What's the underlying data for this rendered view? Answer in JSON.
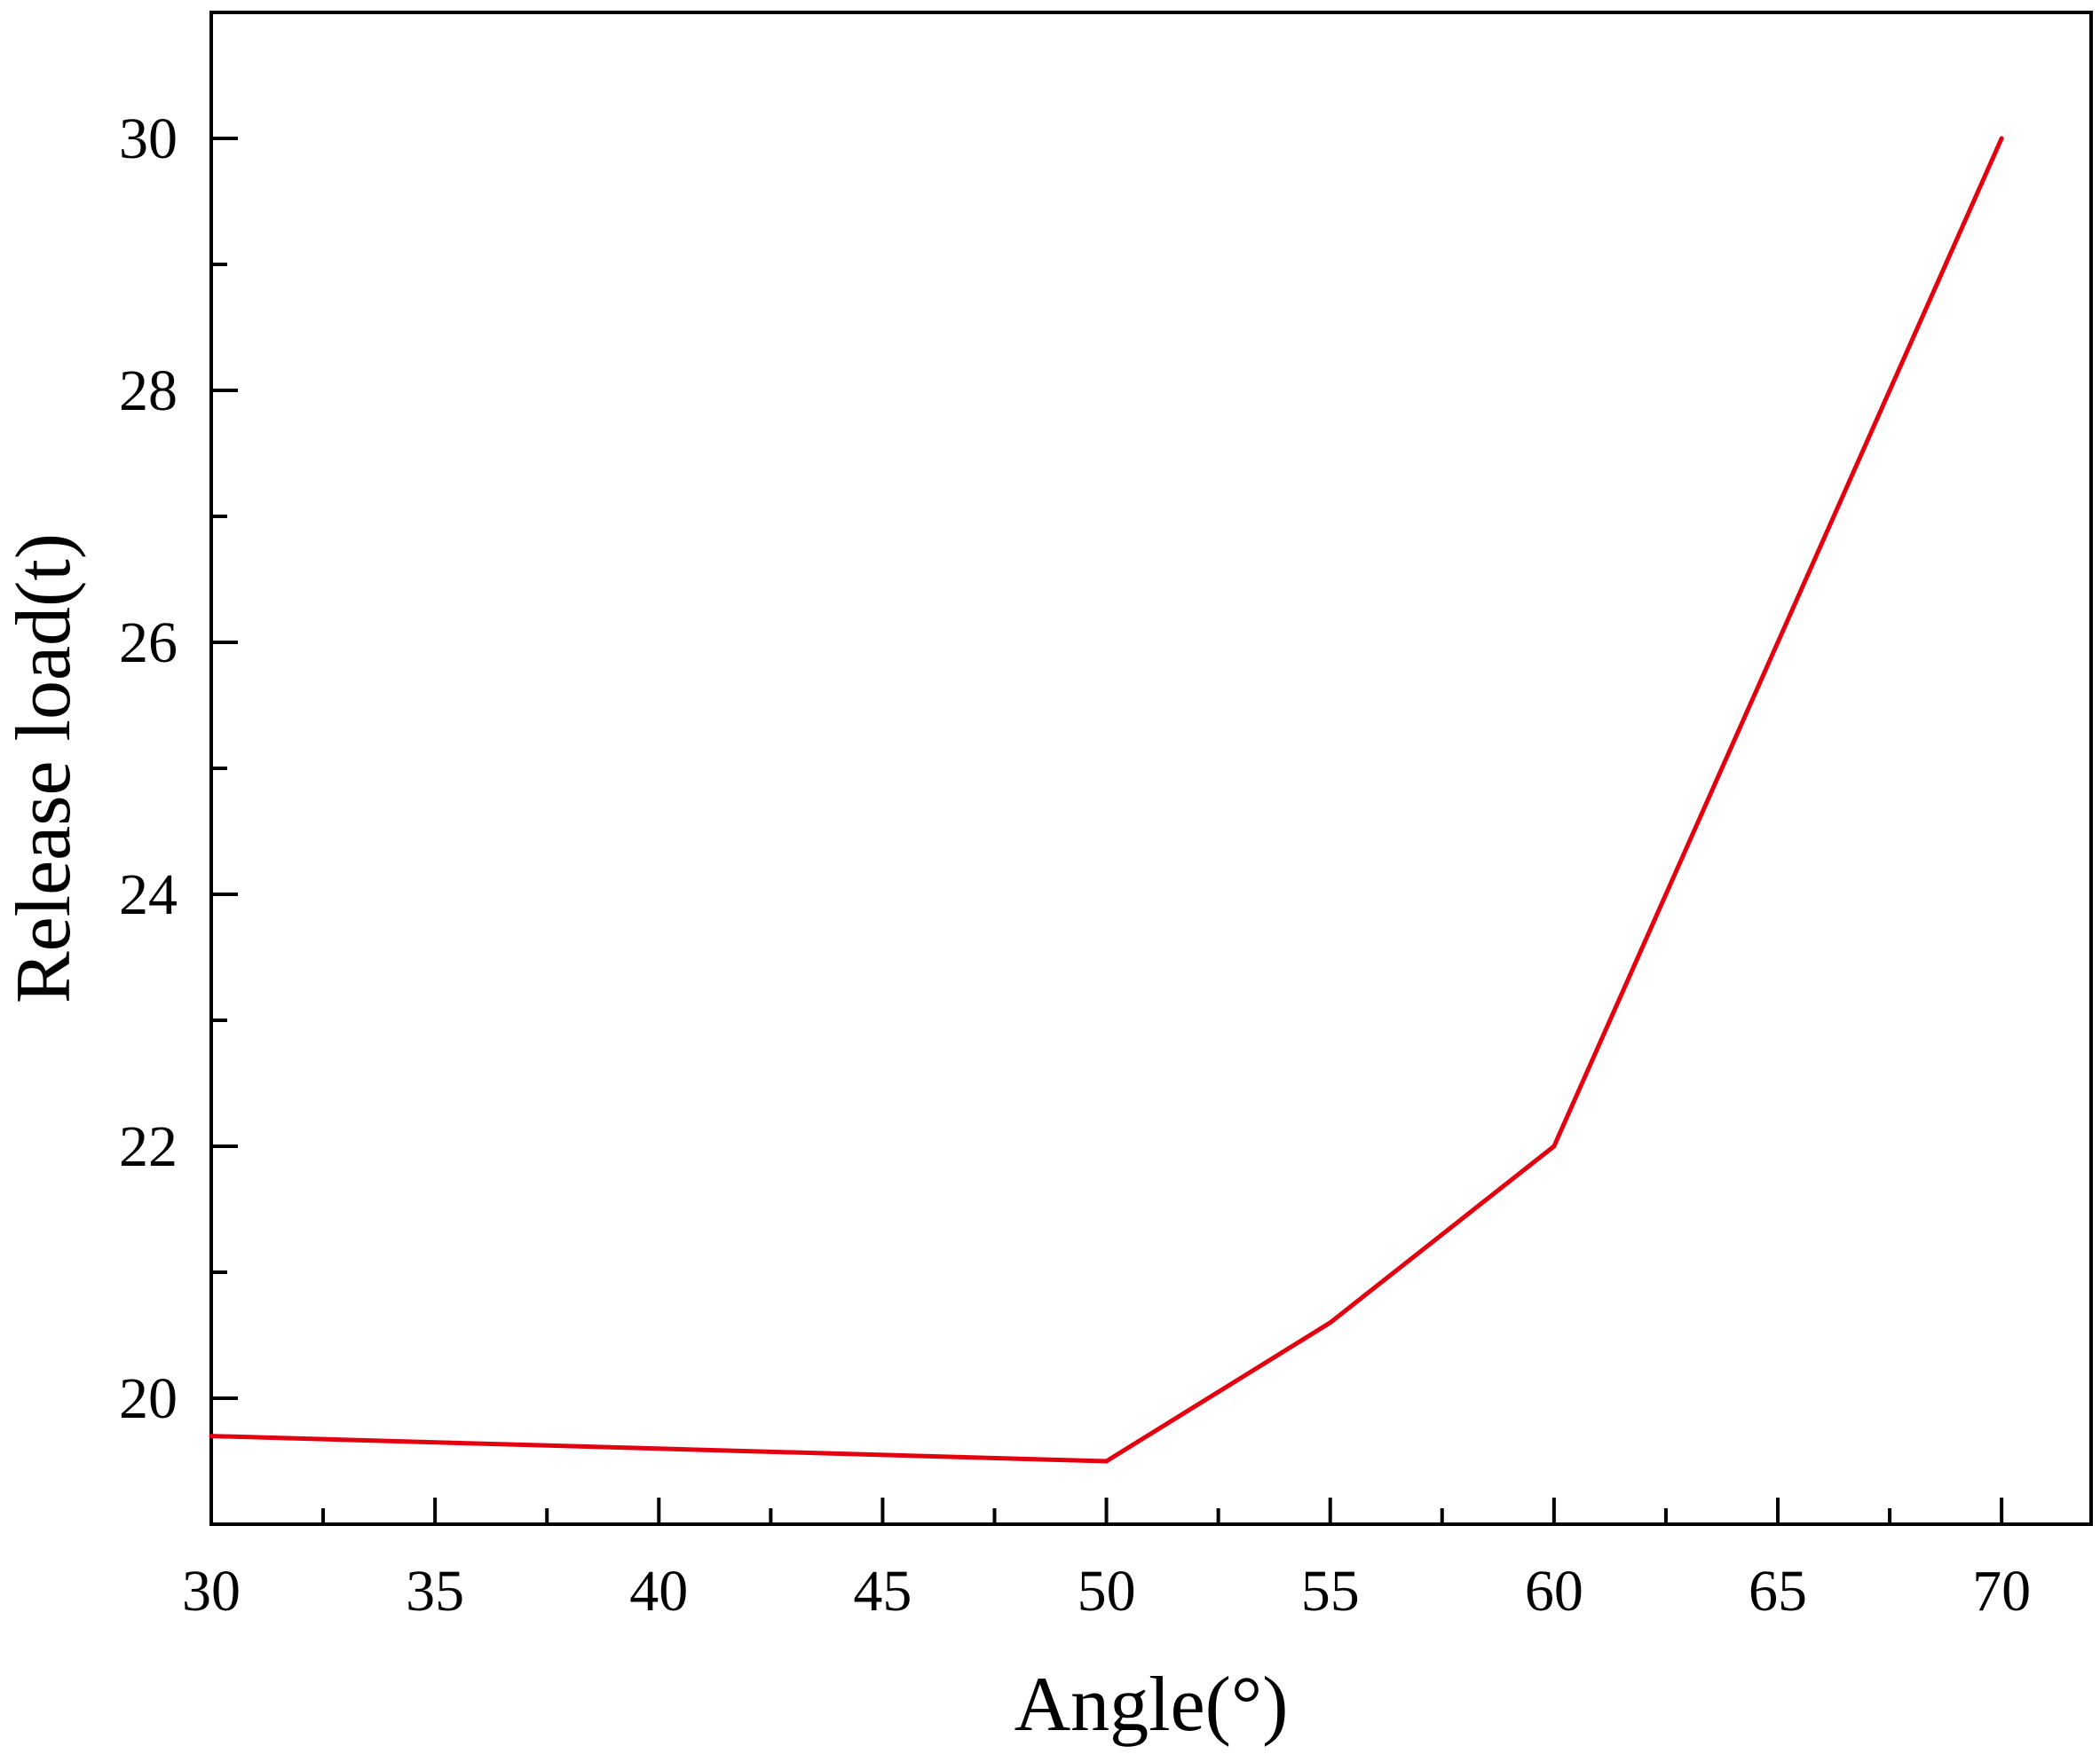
{
  "chart_data": {
    "type": "line",
    "title": "",
    "xlabel": "Angle(°)",
    "ylabel": "Release load(t)",
    "xlim": [
      30,
      72
    ],
    "ylim": [
      19,
      31
    ],
    "x_ticks": [
      "30",
      "35",
      "40",
      "45",
      "50",
      "55",
      "60",
      "65",
      "70"
    ],
    "y_ticks": [
      "20",
      "22",
      "24",
      "26",
      "28",
      "30"
    ],
    "grid": false,
    "legend": "none",
    "series": [
      {
        "color": "#e3000f",
        "x": [
          30,
          50,
          55,
          60,
          65,
          70
        ],
        "y": [
          19.7,
          19.5,
          20.6,
          22.0,
          26.0,
          30.0
        ]
      }
    ]
  }
}
